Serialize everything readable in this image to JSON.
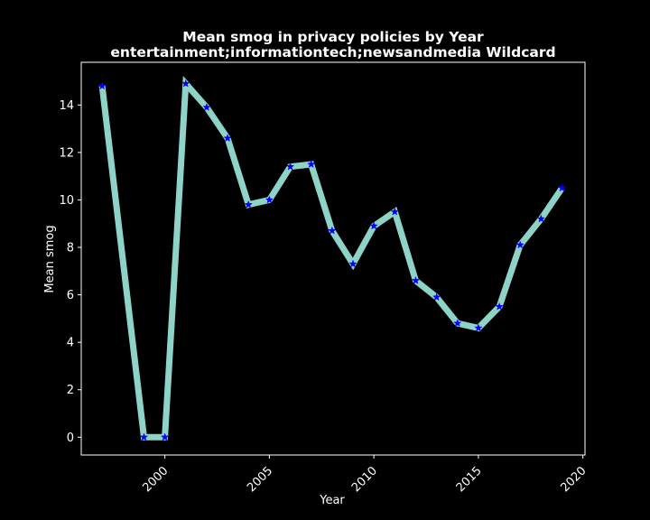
{
  "chart_data": {
    "type": "line",
    "title": "Mean smog in privacy policies by Year",
    "subtitle": "entertainment;informationtech;newsandmedia Wildcard",
    "xlabel": "Year",
    "ylabel": "Mean smog",
    "x": [
      1997,
      1999,
      2000,
      2001,
      2002,
      2003,
      2004,
      2005,
      2006,
      2007,
      2008,
      2009,
      2010,
      2011,
      2012,
      2013,
      2014,
      2015,
      2016,
      2017,
      2018,
      2019
    ],
    "values": [
      14.8,
      0.0,
      0.0,
      14.9,
      13.9,
      12.6,
      9.8,
      10.0,
      11.4,
      11.5,
      8.7,
      7.3,
      8.9,
      9.5,
      6.6,
      5.9,
      4.8,
      4.6,
      5.5,
      8.1,
      9.2,
      10.5
    ],
    "xlim": [
      1996,
      2020.1
    ],
    "ylim": [
      -0.75,
      15.8
    ],
    "xticks": [
      2000,
      2005,
      2010,
      2015,
      2020
    ],
    "yticks": [
      0,
      2,
      4,
      6,
      8,
      10,
      12,
      14
    ],
    "grid": false,
    "colors": {
      "background": "#000000",
      "line": "#8dd3c7",
      "marker": "#0000ff",
      "text": "#ffffff"
    }
  }
}
